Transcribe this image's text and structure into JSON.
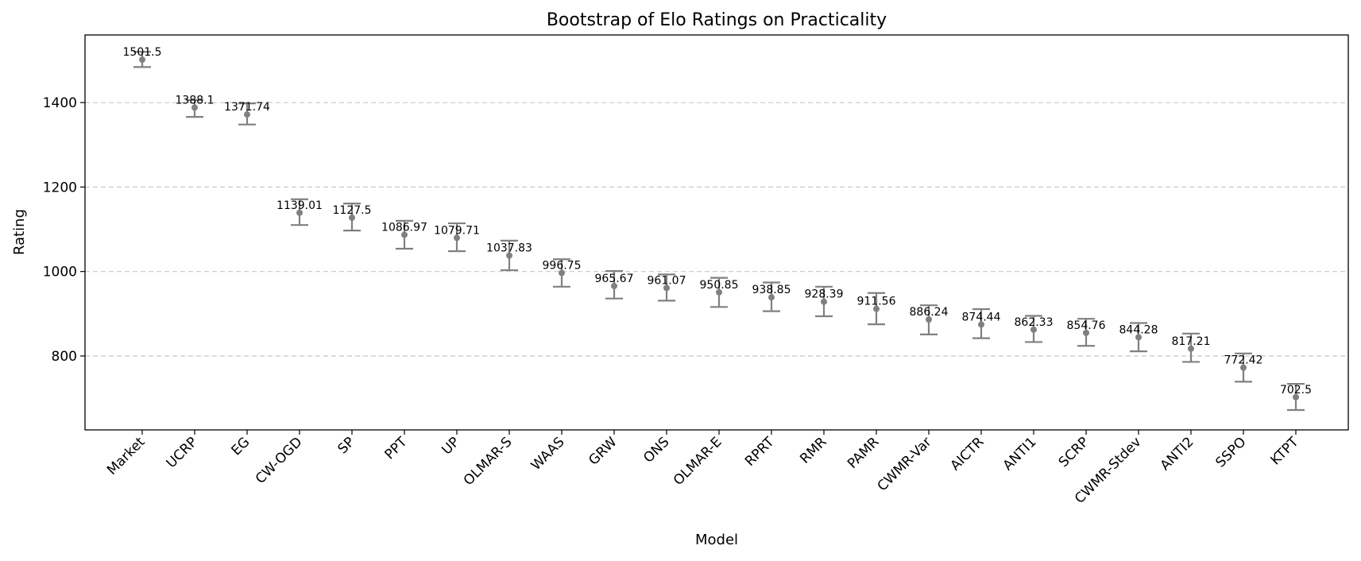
{
  "chart_data": {
    "type": "scatter",
    "title": "Bootstrap of Elo Ratings on Practicality",
    "xlabel": "Model",
    "ylabel": "Rating",
    "ylim": [
      625,
      1560
    ],
    "yticks": [
      800,
      1000,
      1200,
      1400
    ],
    "grid": "horizontal dashed",
    "categories": [
      "Market",
      "UCRP",
      "EG",
      "CW-OGD",
      "SP",
      "PPT",
      "UP",
      "OLMAR-S",
      "WAAS",
      "GRW",
      "ONS",
      "OLMAR-E",
      "RPRT",
      "RMR",
      "PAMR",
      "CWMR-Var",
      "AICTR",
      "ANTI1",
      "SCRP",
      "CWMR-Stdev",
      "ANTI2",
      "SSPO",
      "KTPT"
    ],
    "values": [
      1501.5,
      1388.1,
      1371.74,
      1139.01,
      1127.5,
      1086.97,
      1079.71,
      1037.83,
      996.75,
      965.67,
      961.07,
      950.85,
      938.85,
      928.39,
      911.56,
      886.24,
      874.44,
      862.33,
      854.76,
      844.28,
      817.21,
      772.42,
      702.5
    ],
    "value_labels": [
      "1501.5",
      "1388.1",
      "1371.74",
      "1139.01",
      "1127.5",
      "1086.97",
      "1079.71",
      "1037.83",
      "996.75",
      "965.67",
      "961.07",
      "950.85",
      "938.85",
      "928.39",
      "911.56",
      "886.24",
      "874.44",
      "862.33",
      "854.76",
      "844.28",
      "817.21",
      "772.42",
      "702.5"
    ],
    "lower": [
      1484,
      1366,
      1348,
      1110,
      1097,
      1054,
      1048,
      1003,
      964,
      936,
      931,
      916,
      906,
      894,
      875,
      851,
      842,
      833,
      824,
      811,
      786,
      739,
      672
    ],
    "upper": [
      1520,
      1406,
      1398,
      1171,
      1161,
      1120,
      1114,
      1073,
      1029,
      1001,
      993,
      985,
      974,
      964,
      949,
      920,
      911,
      895,
      888,
      878,
      853,
      806,
      734
    ],
    "colors": {
      "marker": "#808080",
      "grid": "#c8c8c8"
    }
  }
}
